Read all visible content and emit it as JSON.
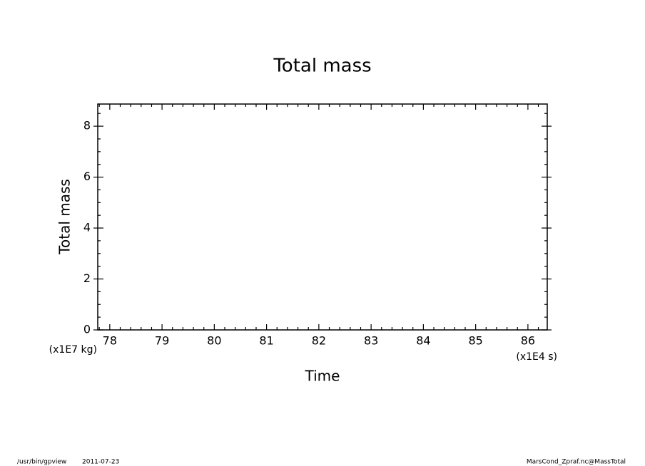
{
  "chart_data": {
    "type": "line",
    "title": "Total mass",
    "x_label": "Time",
    "y_label": "Total mass",
    "x_unit": "(x1E4 s)",
    "y_unit": "(x1E7 kg)",
    "xlim": [
      77.77,
      86.37
    ],
    "ylim": [
      0,
      8.87
    ],
    "xticks": [
      78,
      79,
      80,
      81,
      82,
      83,
      84,
      85,
      86
    ],
    "yticks": [
      0,
      2,
      4,
      6,
      8
    ],
    "xminorticks": [
      77.8,
      78.2,
      78.4,
      78.6,
      78.8,
      79.2,
      79.4,
      79.6,
      79.8,
      80.2,
      80.4,
      80.6,
      80.8,
      81.2,
      81.4,
      81.6,
      81.8,
      82.2,
      82.4,
      82.6,
      82.8,
      83.2,
      83.4,
      83.6,
      83.8,
      84.2,
      84.4,
      84.6,
      84.8,
      85.2,
      85.4,
      85.6,
      85.8,
      86.2
    ],
    "yminorticks": [
      0.5,
      1,
      1.5,
      2.5,
      3,
      3.5,
      4.5,
      5,
      5.5,
      6.5,
      7,
      7.5,
      8.5
    ],
    "footer_left": [
      "/usr/bin/gpview",
      "2011-07-23"
    ],
    "footer_right": "MarsCond_Zpraf.nc@MassTotal"
  }
}
